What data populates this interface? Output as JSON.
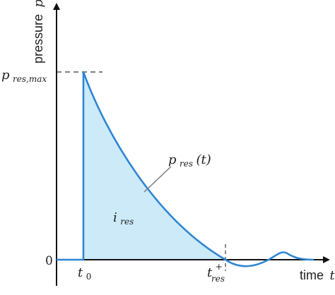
{
  "y_axis": {
    "title": "pressure",
    "variable": "p"
  },
  "x_axis": {
    "title": "time",
    "variable": "t"
  },
  "labels": {
    "p_res_max": "p",
    "p_res_max_sub": "res,max",
    "zero": "0",
    "t0_main": "t",
    "t0_sub": "0",
    "tres_main": "t",
    "tres_sup": "+",
    "tres_sub": "res",
    "curve_label": "p",
    "curve_label_sub": "res",
    "curve_label_arg": "(t)",
    "area_label": "i",
    "area_label_sub": "res"
  },
  "colors": {
    "curve": "#2f86d4",
    "fill": "#cdeaf8",
    "axis": "#111111",
    "dash": "#555555",
    "leader": "#777777"
  }
}
